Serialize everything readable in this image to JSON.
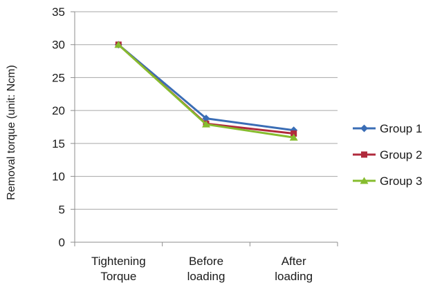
{
  "chart_data": {
    "type": "line",
    "categories": [
      [
        "Tightening",
        "Torque"
      ],
      [
        "Before",
        "loading"
      ],
      [
        "After",
        "loading"
      ]
    ],
    "series": [
      {
        "name": "Group 1",
        "values": [
          30,
          18.8,
          17.0
        ],
        "color": "#3a6db5",
        "marker": "diamond"
      },
      {
        "name": "Group 2",
        "values": [
          30,
          18.0,
          16.5
        ],
        "color": "#b02a3c",
        "marker": "square"
      },
      {
        "name": "Group 3",
        "values": [
          30,
          17.9,
          15.9
        ],
        "color": "#86bc2e",
        "marker": "triangle"
      }
    ],
    "ylabel": "Removal torque (unit: Ncm)",
    "ylim": [
      0,
      35
    ],
    "yticks": [
      0,
      5,
      10,
      15,
      20,
      25,
      30,
      35
    ],
    "grid": true,
    "legend_position": "right"
  }
}
